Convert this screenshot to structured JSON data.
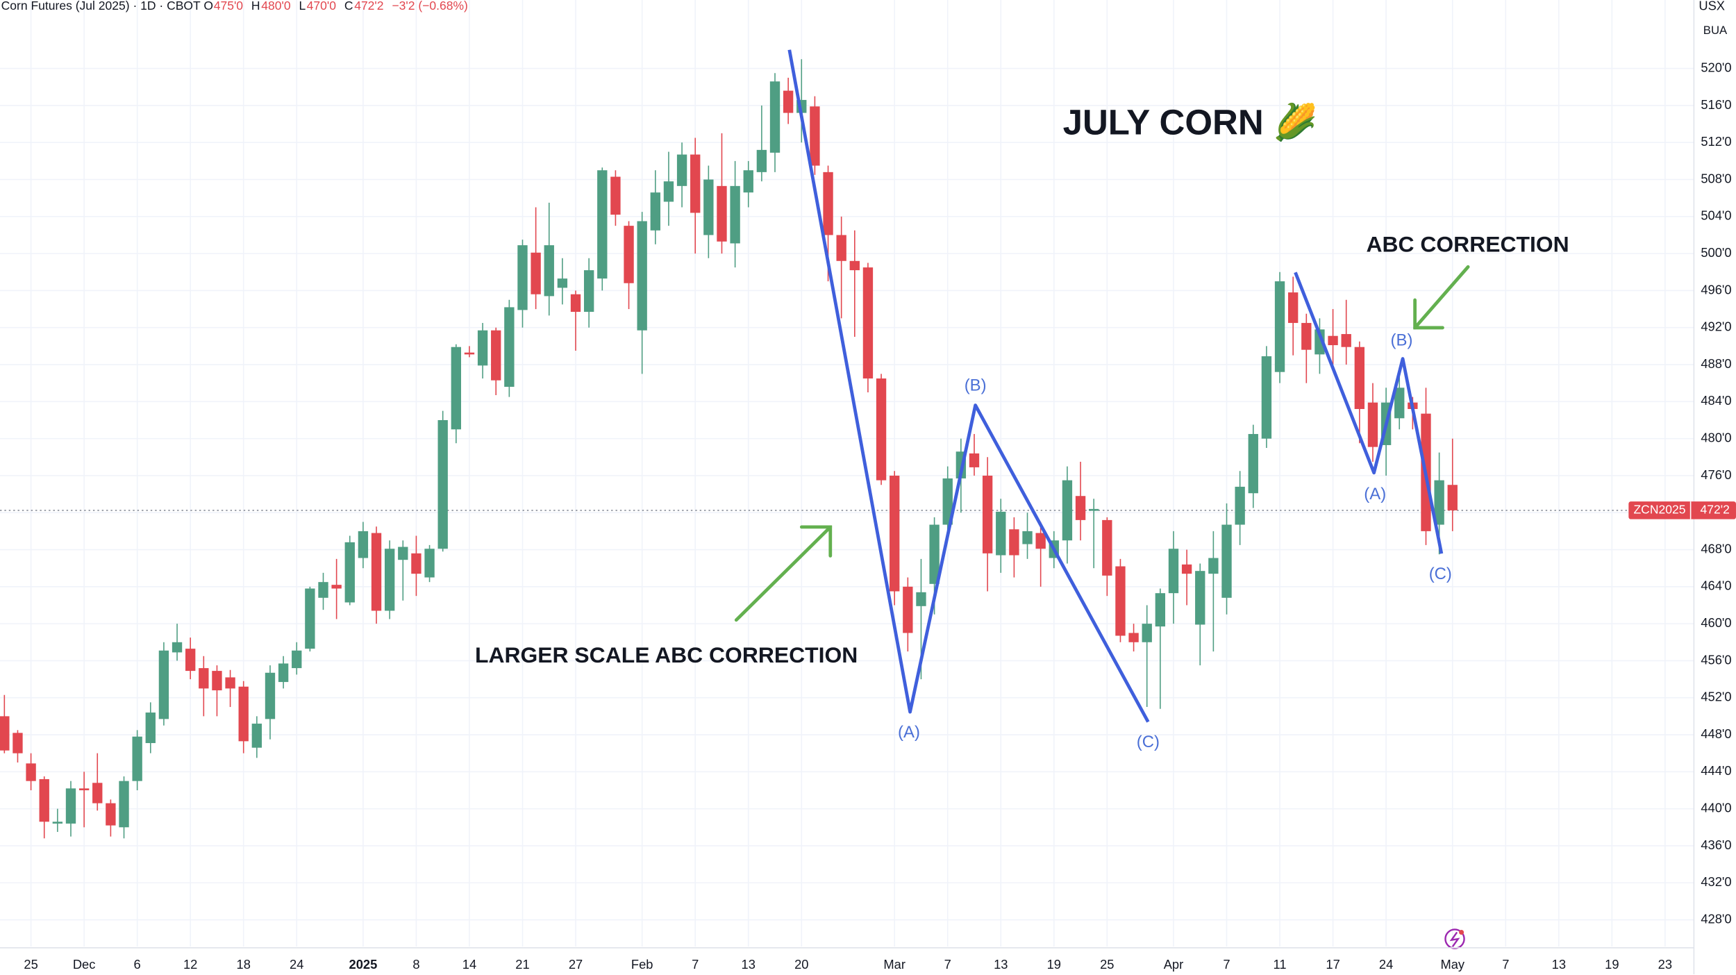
{
  "chart_data": {
    "type": "candlestick",
    "title": "Corn Futures (Jul 2025) · 1D · CBOT",
    "header": {
      "open_key": "O",
      "open": "475'0",
      "high_key": "H",
      "high": "480'0",
      "low_key": "L",
      "low": "470'0",
      "close_key": "C",
      "close": "472'2",
      "change": "−3'2 (−0.68%)"
    },
    "currency": "USX",
    "unit": "BUA",
    "annotations": [
      "JULY CORN 🌽",
      "ABC CORRECTION",
      "LARGER SCALE ABC CORRECTION"
    ],
    "wave_labels": [
      "(A)",
      "(B)",
      "(C)",
      "(A)",
      "(B)",
      "(C)"
    ],
    "last_price": {
      "symbol": "ZCN2025",
      "value": 472.25,
      "label": "472'2",
      "color": "#e2474f"
    },
    "up_color": "#4f9e83",
    "down_color": "#e2474f",
    "grid": true,
    "open": [
      450,
      448.2,
      444.9,
      443.2,
      438.4,
      438.4,
      442.2,
      442.8,
      440.6,
      438,
      443,
      447.1,
      449.7,
      456.9,
      457.3,
      455.2,
      454.9,
      454.2,
      453.2,
      446.6,
      449.7,
      453.7,
      455.2,
      457.3,
      462.8,
      464.2,
      462.3,
      467.1,
      469.8,
      461.4,
      466.9,
      467.6,
      465,
      468.1,
      481,
      489.3,
      487.9,
      491.7,
      485.6,
      493.9,
      500.1,
      495.4,
      496.3,
      495.6,
      493.7,
      497.3,
      508.3,
      503,
      491.7,
      502.5,
      505.6,
      507.3,
      510.7,
      502,
      507.3,
      501.1,
      506.6,
      508.8,
      510.9,
      517.6,
      515.2,
      515.9,
      508.8,
      502,
      499.2,
      498.5,
      486.5,
      476,
      464,
      461.9,
      464.3,
      470.7,
      475.7,
      478.4,
      476,
      467.4,
      470.2,
      468.6,
      469.8,
      467.1,
      469,
      473.8,
      472.2,
      471.2,
      466.2,
      459,
      458,
      459.7,
      463.3,
      466.4,
      459.9,
      465.4,
      462.8,
      470.7,
      474.1,
      480,
      487.2,
      495.8,
      492.5,
      489.1,
      491.1,
      491.3,
      489.9,
      483.9,
      479.3,
      482.2,
      483.9,
      482.7,
      470.7,
      475
    ],
    "high": [
      452.3,
      448.5,
      446,
      443.5,
      440,
      443,
      444,
      446,
      441,
      443.5,
      448.5,
      451.5,
      458,
      460,
      458.5,
      456.5,
      455.5,
      455,
      453.8,
      450,
      455.5,
      456.5,
      458,
      464,
      465.5,
      467,
      469.5,
      471,
      470.5,
      469,
      469,
      469.5,
      468.5,
      483,
      490.2,
      490,
      492.5,
      492,
      495,
      501.5,
      505,
      505.5,
      499.5,
      496,
      499.5,
      509.3,
      509,
      503.5,
      504.5,
      509,
      511,
      512,
      512.5,
      509.5,
      513,
      510,
      510,
      516,
      519.5,
      519,
      521,
      517,
      509.5,
      504,
      502.5,
      499,
      487,
      476.5,
      465,
      467,
      471.5,
      477,
      480,
      480.5,
      478,
      473.5,
      471.5,
      472,
      471,
      470,
      477,
      477.5,
      473.5,
      471.5,
      467,
      460,
      462,
      463.8,
      470,
      468,
      466.5,
      470,
      473,
      476.5,
      481.5,
      490,
      498,
      497.5,
      493.5,
      493,
      494,
      495,
      490.5,
      486,
      485.5,
      487.5,
      484.5,
      485.5,
      478.5,
      480
    ],
    "low": [
      446,
      445,
      442,
      436.8,
      437.5,
      437,
      438,
      439.8,
      437,
      436.8,
      442,
      446,
      449,
      456,
      454,
      450,
      450,
      451,
      446,
      445.5,
      447.5,
      453,
      454.5,
      457,
      461.5,
      460.5,
      462,
      466,
      460,
      460.5,
      462.5,
      463,
      464.5,
      467.8,
      479.5,
      488.8,
      486.5,
      484.7,
      484.5,
      492,
      494,
      493.3,
      494.5,
      489.5,
      492,
      496,
      503,
      494,
      487,
      501,
      503,
      505,
      500,
      499.5,
      500,
      498.5,
      505,
      507.8,
      508.8,
      514,
      512,
      508.5,
      497,
      493,
      491,
      485,
      475,
      462,
      457,
      454,
      461,
      469,
      472,
      476,
      463.5,
      465.5,
      465,
      467,
      464,
      466,
      466.5,
      469,
      466,
      463,
      458,
      457,
      451,
      450.8,
      460,
      462,
      455.5,
      457,
      461,
      468.5,
      472.5,
      479,
      486,
      489,
      486,
      487,
      488,
      488,
      479.5,
      477.5,
      476,
      481,
      481,
      468.5,
      467.5,
      470
    ],
    "close": [
      446.3,
      446,
      443,
      438.6,
      438.6,
      442.2,
      442,
      440.6,
      438.2,
      443,
      447.8,
      450.4,
      457.1,
      458,
      454.9,
      453,
      452.8,
      453,
      447.3,
      449.2,
      454.7,
      455.7,
      457.1,
      463.8,
      464.5,
      463.8,
      468.8,
      470,
      461.4,
      468.1,
      468.3,
      465.4,
      468.1,
      482,
      489.9,
      489.1,
      491.7,
      486.3,
      494.2,
      500.9,
      495.6,
      500.9,
      497.3,
      493.7,
      498.2,
      509,
      504.2,
      496.8,
      503.5,
      506.6,
      507.8,
      510.7,
      504.4,
      508,
      501.3,
      507.3,
      509,
      511.2,
      518.6,
      515.2,
      516.6,
      509.5,
      502,
      499.2,
      498.2,
      486.5,
      475.5,
      463.5,
      459,
      463.4,
      470.7,
      475.7,
      478.6,
      476.9,
      467.6,
      472.1,
      467.4,
      470,
      468.1,
      469,
      475.5,
      471.2,
      472.4,
      465.2,
      458.7,
      458,
      460,
      463.3,
      468.1,
      465.4,
      465.7,
      467.1,
      470.7,
      474.8,
      480.5,
      488.9,
      497,
      492.5,
      489.6,
      491.8,
      490.1,
      489.9,
      483.2,
      479.1,
      483.9,
      485.5,
      483.2,
      470,
      475.5,
      472.25
    ],
    "xlim": [
      -0.33,
      127.17
    ],
    "xticks": [
      {
        "value": 2,
        "label": "25"
      },
      {
        "value": 6,
        "label": "Dec"
      },
      {
        "value": 10,
        "label": "6"
      },
      {
        "value": 14,
        "label": "12"
      },
      {
        "value": 18,
        "label": "18"
      },
      {
        "value": 22,
        "label": "24"
      },
      {
        "value": 27,
        "label": "2025"
      },
      {
        "value": 31,
        "label": "8"
      },
      {
        "value": 35,
        "label": "14"
      },
      {
        "value": 39,
        "label": "21"
      },
      {
        "value": 43,
        "label": "27"
      },
      {
        "value": 48,
        "label": "Feb"
      },
      {
        "value": 52,
        "label": "7"
      },
      {
        "value": 56,
        "label": "13"
      },
      {
        "value": 60,
        "label": "20"
      },
      {
        "value": 67,
        "label": "Mar"
      },
      {
        "value": 71,
        "label": "7"
      },
      {
        "value": 75,
        "label": "13"
      },
      {
        "value": 79,
        "label": "19"
      },
      {
        "value": 83,
        "label": "25"
      },
      {
        "value": 88,
        "label": "Apr"
      },
      {
        "value": 92,
        "label": "7"
      },
      {
        "value": 96,
        "label": "11"
      },
      {
        "value": 100,
        "label": "17"
      },
      {
        "value": 104,
        "label": "24"
      },
      {
        "value": 109,
        "label": "May"
      },
      {
        "value": 113,
        "label": "7"
      },
      {
        "value": 117,
        "label": "13"
      },
      {
        "value": 121,
        "label": "19"
      },
      {
        "value": 125,
        "label": "23"
      }
    ],
    "ylim": [
      425.1,
      527.4
    ],
    "yticks": [
      {
        "value": 428,
        "label": "428'0"
      },
      {
        "value": 432,
        "label": "432'0"
      },
      {
        "value": 436,
        "label": "436'0"
      },
      {
        "value": 440,
        "label": "440'0"
      },
      {
        "value": 444,
        "label": "444'0"
      },
      {
        "value": 448,
        "label": "448'0"
      },
      {
        "value": 452,
        "label": "452'0"
      },
      {
        "value": 456,
        "label": "456'0"
      },
      {
        "value": 460,
        "label": "460'0"
      },
      {
        "value": 464,
        "label": "464'0"
      },
      {
        "value": 468,
        "label": "468'0"
      },
      {
        "value": 472,
        "label": "472'0"
      },
      {
        "value": 476,
        "label": "476'0"
      },
      {
        "value": 480,
        "label": "480'0"
      },
      {
        "value": 484,
        "label": "484'0"
      },
      {
        "value": 488,
        "label": "488'0"
      },
      {
        "value": 492,
        "label": "492'0"
      },
      {
        "value": 496,
        "label": "496'0"
      },
      {
        "value": 500,
        "label": "500'0"
      },
      {
        "value": 504,
        "label": "504'0"
      },
      {
        "value": 508,
        "label": "508'0"
      },
      {
        "value": 512,
        "label": "512'0"
      },
      {
        "value": 516,
        "label": "516'0"
      },
      {
        "value": 520,
        "label": "520'0"
      }
    ]
  }
}
